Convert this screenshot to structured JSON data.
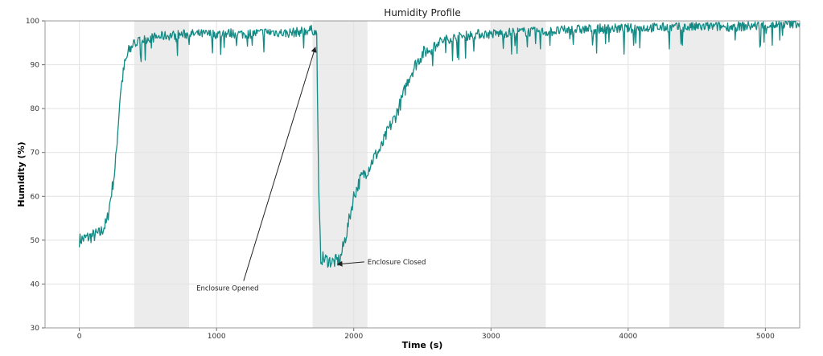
{
  "chart_data": {
    "type": "line",
    "title": "Humidity Profile",
    "xlabel": "Time (s)",
    "ylabel": "Humidity (%)",
    "xlim": [
      -250,
      5250
    ],
    "ylim": [
      30,
      100
    ],
    "xticks": [
      0,
      1000,
      2000,
      3000,
      4000,
      5000
    ],
    "yticks": [
      30,
      40,
      50,
      60,
      70,
      80,
      90,
      100
    ],
    "grid": true,
    "line_color": "#138a84",
    "shaded_regions": [
      [
        400,
        800
      ],
      [
        1700,
        2100
      ],
      [
        3000,
        3400
      ],
      [
        4300,
        4700
      ]
    ],
    "series": [
      {
        "x": [
          0,
          50,
          100,
          150,
          200,
          230,
          260,
          280,
          300,
          330,
          360,
          400,
          450,
          500,
          600,
          700,
          800,
          900,
          1000,
          1100,
          1200,
          1300,
          1400,
          1500,
          1600,
          1700,
          1730,
          1745,
          1760,
          1800,
          1850,
          1900,
          1950,
          2000,
          2050,
          2100,
          2150,
          2200,
          2250,
          2300,
          2350,
          2400,
          2450,
          2500,
          2550,
          2600,
          2700,
          2800,
          2900,
          3000,
          3200,
          3400,
          3600,
          3800,
          4000,
          4200,
          4400,
          4600,
          4800,
          5000,
          5250
        ],
        "y": [
          50,
          50.5,
          51,
          51.5,
          54,
          60,
          66,
          75,
          84,
          90,
          93,
          95,
          95.5,
          96,
          96.5,
          96.8,
          97,
          97,
          97,
          97.2,
          97,
          97.2,
          97.5,
          97.2,
          97.5,
          98,
          97,
          60,
          46,
          45.5,
          45,
          45.5,
          52,
          60,
          64,
          66,
          69,
          71,
          75,
          78,
          82,
          87,
          90,
          92.5,
          93.5,
          95,
          96,
          96.5,
          97,
          97,
          97.5,
          97.5,
          98,
          98.2,
          98.3,
          98.5,
          98.5,
          98.7,
          98.7,
          99,
          99.5
        ]
      }
    ],
    "annotations": [
      {
        "text": "Enclosure Opened",
        "text_x": 1080,
        "text_y": 38.5,
        "point_x": 1720,
        "point_y": 94
      },
      {
        "text": "Enclosure Closed",
        "text_x": 2100,
        "text_y": 44.5,
        "point_x": 1880,
        "point_y": 44.5
      }
    ]
  }
}
